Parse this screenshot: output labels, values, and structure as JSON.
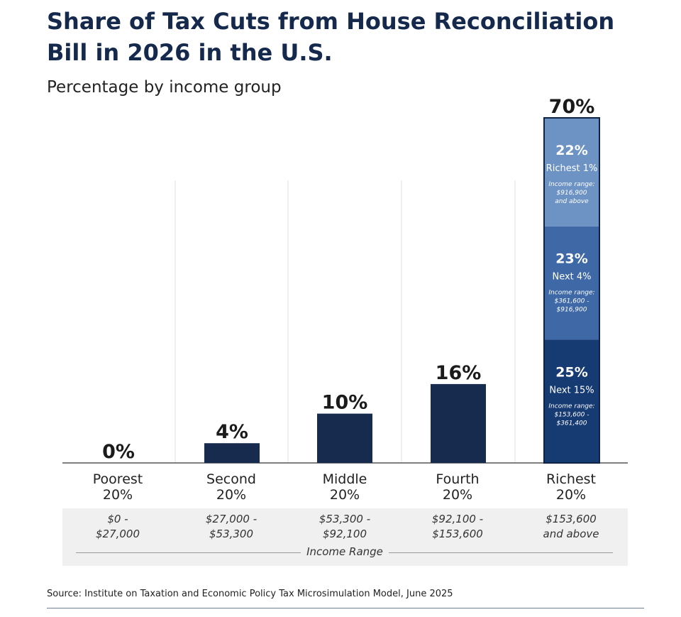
{
  "header": {
    "title": "Share of Tax Cuts from House Reconciliation Bill in 2026 in the U.S.",
    "subtitle": "Percentage by income group"
  },
  "chart_data": {
    "type": "bar",
    "title": "Share of Tax Cuts from House Reconciliation Bill in 2026 in the U.S.",
    "subtitle": "Percentage by income group",
    "xlabel": "Income Range",
    "ylabel": "",
    "ylim": [
      0,
      70
    ],
    "unit": "%",
    "categories": [
      {
        "line1": "Poorest",
        "line2": "20%",
        "range1": "$0 -",
        "range2": "$27,000"
      },
      {
        "line1": "Second",
        "line2": "20%",
        "range1": "$27,000 -",
        "range2": "$53,300"
      },
      {
        "line1": "Middle",
        "line2": "20%",
        "range1": "$53,300 -",
        "range2": "$92,100"
      },
      {
        "line1": "Fourth",
        "line2": "20%",
        "range1": "$92,100 -",
        "range2": "$153,600"
      },
      {
        "line1": "Richest",
        "line2": "20%",
        "range1": "$153,600",
        "range2": "and above"
      }
    ],
    "values": [
      0,
      4,
      10,
      16,
      70
    ],
    "labels": [
      "0%",
      "4%",
      "10%",
      "16%",
      "70%"
    ],
    "bar_color": "#162b4d",
    "richest_breakdown": [
      {
        "value": 25,
        "label": "25%",
        "group": "Next 15%",
        "range_title": "Income range:",
        "range1": "$153,600 -",
        "range2": "$361,400",
        "color": "#163a72"
      },
      {
        "value": 23,
        "label": "23%",
        "group": "Next 4%",
        "range_title": "Income range:",
        "range1": "$361,600 -",
        "range2": "$916,900",
        "color": "#3f69a6"
      },
      {
        "value": 22,
        "label": "22%",
        "group": "Richest 1%",
        "range_title": "Income range:",
        "range1": "$916,900",
        "range2": "and above",
        "color": "#6d93c4"
      }
    ]
  },
  "source": "Source: Institute on Taxation and Economic Policy Tax Microsimulation Model, June 2025"
}
